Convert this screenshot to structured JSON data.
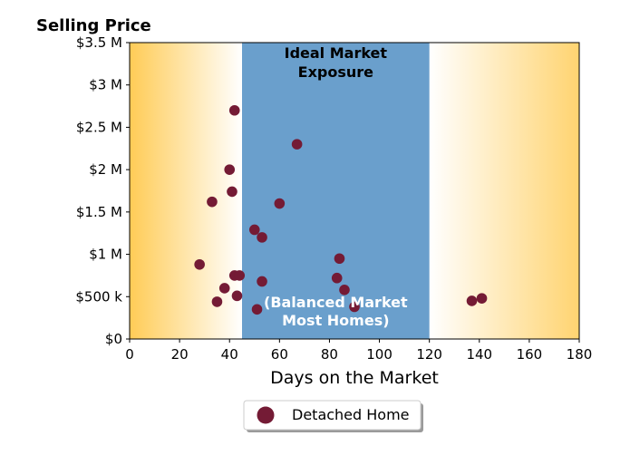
{
  "chart_data": {
    "type": "scatter",
    "ylabel": "Selling Price",
    "xlabel": "Days on the Market",
    "xlim": [
      0,
      180
    ],
    "ylim": [
      0,
      3500000
    ],
    "x_ticks": [
      0,
      20,
      40,
      60,
      80,
      100,
      120,
      140,
      160,
      180
    ],
    "x_tick_labels": [
      "0",
      "20",
      "40",
      "60",
      "80",
      "100",
      "120",
      "140",
      "160",
      "180"
    ],
    "y_ticks": [
      0,
      500000,
      1000000,
      1500000,
      2000000,
      2500000,
      3000000,
      3500000
    ],
    "y_tick_labels": [
      "$0",
      "$500 k",
      "$1 M",
      "$1.5 M",
      "$2 M",
      "$2.5 M",
      "$3 M",
      "$3.5 M"
    ],
    "grid": false,
    "legend_position": "bottom-center",
    "colors": {
      "points": "#741b35",
      "band": "#6a9fcc",
      "gradient_edge": "#ffc94d"
    },
    "bands": [
      {
        "x_range": [
          45,
          120
        ],
        "title_lines": [
          "Ideal Market",
          "Exposure"
        ],
        "subtitle_lines": [
          "(Balanced Market",
          "Most Homes)"
        ]
      }
    ],
    "series": [
      {
        "name": "Detached Home",
        "points": [
          {
            "x": 28,
            "y": 880000
          },
          {
            "x": 33,
            "y": 1620000
          },
          {
            "x": 35,
            "y": 440000
          },
          {
            "x": 38,
            "y": 600000
          },
          {
            "x": 40,
            "y": 2000000
          },
          {
            "x": 41,
            "y": 1740000
          },
          {
            "x": 42,
            "y": 2700000
          },
          {
            "x": 42,
            "y": 750000
          },
          {
            "x": 43,
            "y": 510000
          },
          {
            "x": 44,
            "y": 750000
          },
          {
            "x": 50,
            "y": 1290000
          },
          {
            "x": 51,
            "y": 350000
          },
          {
            "x": 53,
            "y": 1200000
          },
          {
            "x": 53,
            "y": 680000
          },
          {
            "x": 60,
            "y": 1600000
          },
          {
            "x": 67,
            "y": 2300000
          },
          {
            "x": 83,
            "y": 720000
          },
          {
            "x": 84,
            "y": 950000
          },
          {
            "x": 86,
            "y": 580000
          },
          {
            "x": 90,
            "y": 380000
          },
          {
            "x": 137,
            "y": 450000
          },
          {
            "x": 141,
            "y": 480000
          }
        ]
      }
    ]
  }
}
